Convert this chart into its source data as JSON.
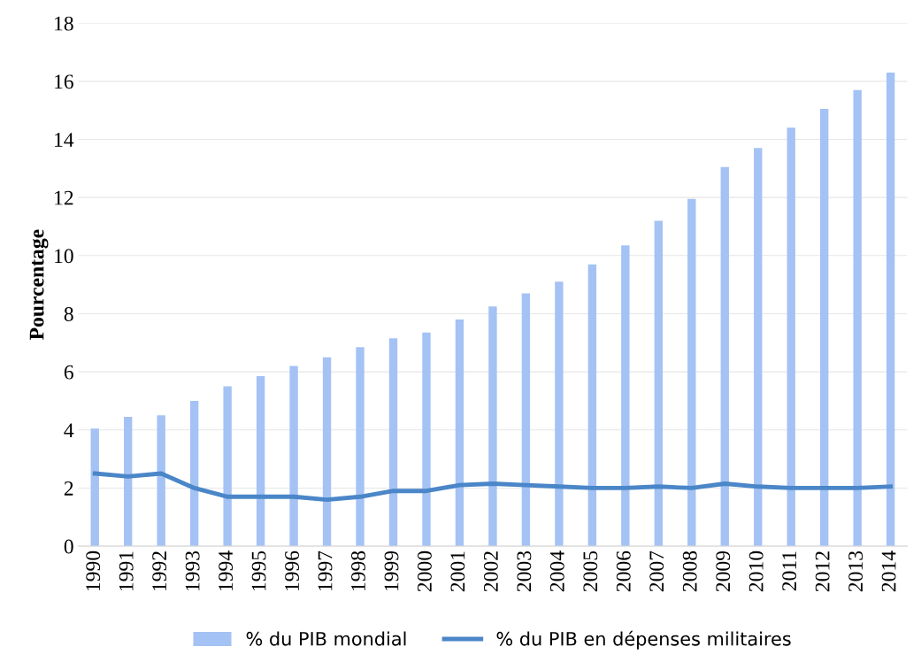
{
  "chart_data": {
    "type": "bar",
    "ylabel": "Pourcentage",
    "categories": [
      "1990",
      "1991",
      "1992",
      "1993",
      "1994",
      "1995",
      "1996",
      "1997",
      "1998",
      "1999",
      "2000",
      "2001",
      "2002",
      "2003",
      "2004",
      "2005",
      "2006",
      "2007",
      "2008",
      "2009",
      "2010",
      "2011",
      "2012",
      "2013",
      "2014"
    ],
    "series": [
      {
        "name": "% du PIB mondial",
        "color": "#a4c2f4",
        "values": [
          4.05,
          4.45,
          4.5,
          5.0,
          5.5,
          5.85,
          6.2,
          6.5,
          6.85,
          7.15,
          7.35,
          7.8,
          8.25,
          8.7,
          9.1,
          9.7,
          10.35,
          11.2,
          11.95,
          13.05,
          13.7,
          14.4,
          15.05,
          15.7,
          16.3
        ]
      },
      {
        "name": "% du PIB en dépenses militaires",
        "type": "line",
        "color": "#4a86c8",
        "values": [
          2.5,
          2.4,
          2.5,
          2.0,
          1.7,
          1.7,
          1.7,
          1.6,
          1.7,
          1.9,
          1.9,
          2.1,
          2.15,
          2.1,
          2.05,
          2.0,
          2.0,
          2.05,
          2.0,
          2.15,
          2.05,
          2.0,
          2.0,
          2.0,
          2.05
        ]
      }
    ],
    "ylim": [
      0,
      18
    ],
    "yticks": [
      0,
      2,
      4,
      6,
      8,
      10,
      12,
      14,
      16,
      18
    ],
    "grid": "y",
    "legend": "bottom"
  }
}
